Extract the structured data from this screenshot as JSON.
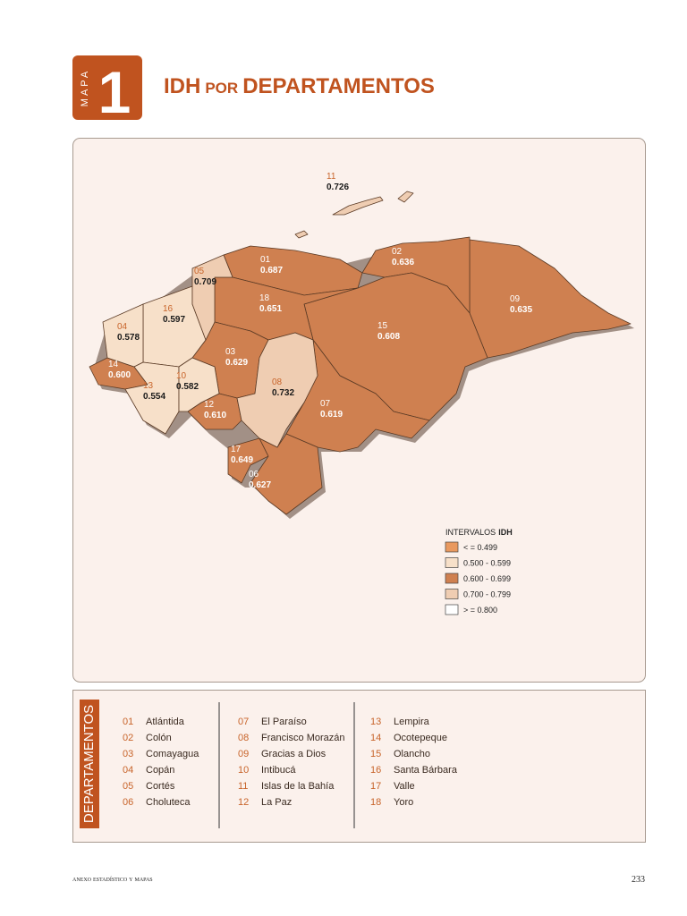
{
  "header": {
    "label": "MAPA",
    "number": "1",
    "title_main": "IDH",
    "title_small": "POR",
    "title_rest": "DEPARTAMENTOS"
  },
  "map": {
    "labels": [
      {
        "code": "11",
        "value": "0.726"
      },
      {
        "code": "02",
        "value": "0.636"
      },
      {
        "code": "09",
        "value": "0.635"
      },
      {
        "code": "05",
        "value": "0.709"
      },
      {
        "code": "01",
        "value": "0.687"
      },
      {
        "code": "18",
        "value": "0.651"
      },
      {
        "code": "16",
        "value": "0.597"
      },
      {
        "code": "04",
        "value": "0.578"
      },
      {
        "code": "15",
        "value": "0.608"
      },
      {
        "code": "03",
        "value": "0.629"
      },
      {
        "code": "14",
        "value": "0.600"
      },
      {
        "code": "10",
        "value": "0.582"
      },
      {
        "code": "13",
        "value": "0.554"
      },
      {
        "code": "08",
        "value": "0.732"
      },
      {
        "code": "07",
        "value": "0.619"
      },
      {
        "code": "12",
        "value": "0.610"
      },
      {
        "code": "17",
        "value": "0.649"
      },
      {
        "code": "06",
        "value": "0.627"
      }
    ]
  },
  "legend": {
    "title": "INTERVALOS",
    "title_bold": "IDH",
    "items": [
      {
        "label": "< = 0.499",
        "color": "#e9995f"
      },
      {
        "label": "0.500 - 0.599",
        "color": "#f7e0c9"
      },
      {
        "label": "0.600 - 0.699",
        "color": "#cf8050"
      },
      {
        "label": "0.700 - 0.799",
        "color": "#efcdb2"
      },
      {
        "label": "> = 0.800",
        "color": "#ffffff"
      }
    ]
  },
  "departments": {
    "title": "DEPARTAMENTOS",
    "items": [
      {
        "code": "01",
        "name": "Atlántida"
      },
      {
        "code": "02",
        "name": "Colón"
      },
      {
        "code": "03",
        "name": "Comayagua"
      },
      {
        "code": "04",
        "name": "Copán"
      },
      {
        "code": "05",
        "name": "Cortés"
      },
      {
        "code": "06",
        "name": "Choluteca"
      },
      {
        "code": "07",
        "name": "El Paraíso"
      },
      {
        "code": "08",
        "name": "Francisco Morazán"
      },
      {
        "code": "09",
        "name": "Gracias a Dios"
      },
      {
        "code": "10",
        "name": "Intibucá"
      },
      {
        "code": "11",
        "name": "Islas de la Bahía"
      },
      {
        "code": "12",
        "name": "La Paz"
      },
      {
        "code": "13",
        "name": "Lempira"
      },
      {
        "code": "14",
        "name": "Ocotepeque"
      },
      {
        "code": "15",
        "name": "Olancho"
      },
      {
        "code": "16",
        "name": "Santa Bárbara"
      },
      {
        "code": "17",
        "name": "Valle"
      },
      {
        "code": "18",
        "name": "Yoro"
      }
    ]
  },
  "footer": {
    "section": "anexo estadístico y mapas",
    "page": "233"
  }
}
